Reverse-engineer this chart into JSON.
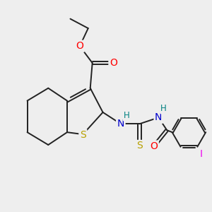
{
  "bg_color": "#eeeeee",
  "bond_color": "#222222",
  "bond_lw": 1.4,
  "atom_colors": {
    "S": "#b8a000",
    "O": "#ff0000",
    "N": "#0000cc",
    "H": "#008080",
    "I": "#ee00ee",
    "C": "#222222"
  }
}
